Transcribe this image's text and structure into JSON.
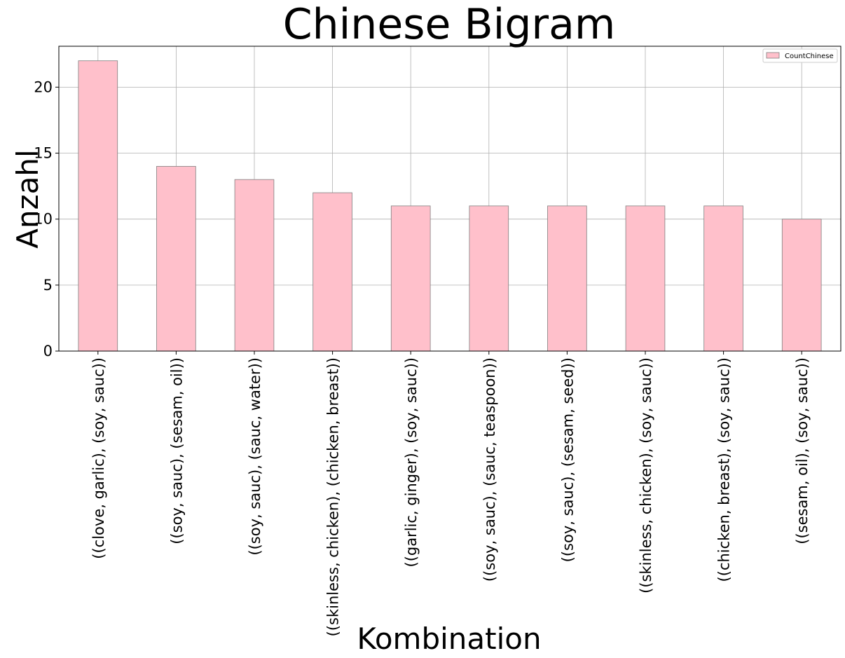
{
  "chart_data": {
    "type": "bar",
    "title": "Chinese Bigram",
    "xlabel": "Kombination",
    "ylabel": "Anzahl",
    "categories": [
      "((clove, garlic), (soy, sauc))",
      "((soy, sauc), (sesam, oil))",
      "((soy, sauc), (sauc, water))",
      "((skinless, chicken), (chicken, breast))",
      "((garlic, ginger), (soy, sauc))",
      "((soy, sauc), (sauc, teaspoon))",
      "((soy, sauc), (sesam, seed))",
      "((skinless, chicken), (soy, sauc))",
      "((chicken, breast), (soy, sauc))",
      "((sesam, oil), (soy, sauc))"
    ],
    "series": [
      {
        "name": "CountChinese",
        "values": [
          22,
          14,
          13,
          12,
          11,
          11,
          11,
          11,
          11,
          10
        ],
        "color": "#ffc0cb",
        "edgecolor": "#808080"
      }
    ],
    "ylim": [
      0,
      23.1
    ],
    "yticks": [
      0,
      5,
      10,
      15,
      20
    ],
    "grid": true,
    "legend_position": "top-right"
  }
}
